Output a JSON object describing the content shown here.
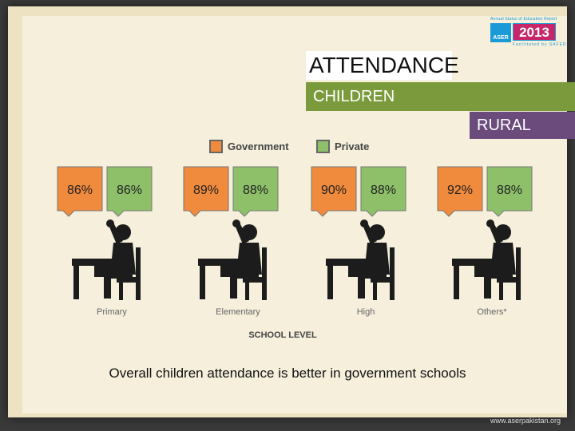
{
  "header": {
    "title": "ATTENDANCE",
    "subtitle": "CHILDREN",
    "area": "RURAL"
  },
  "logo": {
    "small_text": "Annual Status of Education Report",
    "aser": "ASER",
    "year": "2013",
    "facilitated": "Facilitated by SAFED"
  },
  "footer": {
    "caption": "Overall children attendance is better in government schools",
    "website": "www.aserpakistan.org"
  },
  "colors": {
    "government": "#f08a3c",
    "private": "#8ec06a",
    "title_bar": "#7a9a3c",
    "rural_bar": "#6a4b7c",
    "figure": "#1c1c1c"
  },
  "chart_data": {
    "type": "bar",
    "xlabel": "SCHOOL LEVEL",
    "categories": [
      "Primary",
      "Elementary",
      "High",
      "Others*"
    ],
    "series": [
      {
        "name": "Government",
        "values": [
          86,
          89,
          90,
          92
        ],
        "labels": [
          "86%",
          "89%",
          "90%",
          "92%"
        ]
      },
      {
        "name": "Private",
        "values": [
          86,
          88,
          88,
          88
        ],
        "labels": [
          "86%",
          "88%",
          "88%",
          "88%"
        ]
      }
    ],
    "legend": "top",
    "icon": "student-at-desk-raising-hand"
  }
}
